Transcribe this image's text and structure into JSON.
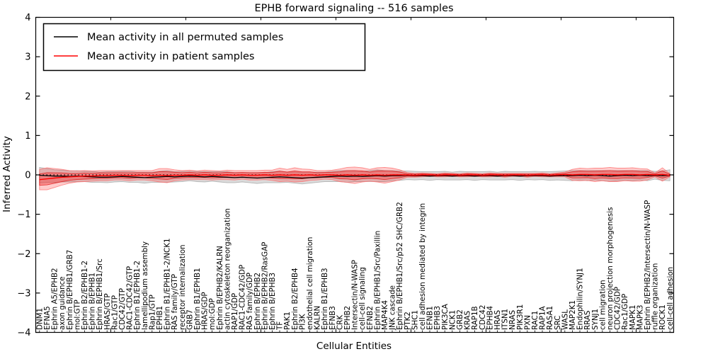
{
  "figure": {
    "title": "EPHB forward signaling -- 516 samples",
    "background": "#ffffff"
  },
  "legend": {
    "position": "upper left",
    "entries": [
      {
        "label": "Mean activity in all permuted samples",
        "color": "#000000"
      },
      {
        "label": "Mean activity in patient samples",
        "color": "#ff0000"
      }
    ]
  },
  "chart_data": {
    "type": "line",
    "title": "EPHB forward signaling -- 516 samples",
    "xlabel": "Cellular Entities",
    "ylabel": "Inferred Activity",
    "ylim": [
      -4,
      4
    ],
    "grid": false,
    "zero_line": "dotted-black-at-0",
    "legend_position": "upper left",
    "yticks": [
      {
        "value": 4,
        "label": "4"
      },
      {
        "value": 3,
        "label": "3"
      },
      {
        "value": 2,
        "label": "2"
      },
      {
        "value": 1,
        "label": "1"
      },
      {
        "value": 0,
        "label": "0"
      },
      {
        "value": -1,
        "label": "−1"
      },
      {
        "value": -2,
        "label": "−2"
      },
      {
        "value": -3,
        "label": "−3"
      },
      {
        "value": -4,
        "label": "−4"
      }
    ],
    "categories": [
      "DNM1",
      "EFNA5",
      "Ephrin A5/EPHB2",
      "axon guidance",
      "Ephrin B/EPHB1/GRB7",
      "mol:GTP",
      "Ephrin B2/EPHB1-2",
      "Ephrin B/EPHB1",
      "Ephrin B/EPHB1/Src",
      "HRAS/GTP",
      "Rac1/GTP",
      "CDC42/GTP",
      "RAC1-CDC42/GTP",
      "Ephrin B1/EPHB1-2",
      "lamellipodium assembly",
      "Rap1/GTP",
      "EPHB1",
      "Ephrin B1/EPHB1-2/NCK1",
      "RAS family/GTP",
      "receptor internalization",
      "GRB7",
      "Ephrin B1/EPHB1",
      "HRAS/GDP",
      "mol:GDP",
      "Ephrin B/EPHB2/KALRN",
      "actin cytoskeleton reorganization",
      "RAP1/GDP",
      "RAC1-CDC42/GDP",
      "RAS family/GDP",
      "Ephrin B/EPHB2",
      "Ephrin B/EPHB2/RasGAP",
      "Ephrin B/EPHB3",
      "TF",
      "PAK1",
      "Ephrin B2/EPHB4",
      "PI3K",
      "endothelial cell migration",
      "KALRN",
      "Ephrin B1/EPHB3",
      "EFNB3",
      "CRK",
      "EPHB2",
      "Intersectin/N-WASP",
      "cell-cell signaling",
      "EFNB2",
      "Ephrin B/EPHB1/Src/Paxillin",
      "MAP4K4",
      "JNK cascade",
      "Ephrin B/EPHB1/Src/p52 SHC/GRB2",
      "PTK2",
      "SHC1",
      "cell adhesion mediated by integrin",
      "EFNB1",
      "EPHB3",
      "PIK3CA",
      "NCK1",
      "GRB2",
      "KRAS",
      "RAP1B",
      "CDC42",
      "EPHB4",
      "HRAS",
      "ITSN1",
      "NRAS",
      "PIK3R1",
      "PXN",
      "RAC1",
      "RAP1A",
      "RASA1",
      "SRC",
      "WASL",
      "MAP2K1",
      "Endophilin/SYNJ1",
      "RRAS",
      "SYNJ1",
      "cell migration",
      "neuron projection morphogenesis",
      "CDC42/GDP",
      "Rac1/GDP",
      "MAPK1",
      "MAPK3",
      "Ephrin B/EPHB2/Intersectin/N-WASP",
      "ruffle organization",
      "ROCK1",
      "cell-cell adhesion"
    ],
    "series": [
      {
        "name": "Mean activity in all permuted samples",
        "color": "#000000",
        "values": [
          -0.01,
          -0.02,
          -0.03,
          -0.03,
          -0.04,
          -0.03,
          -0.04,
          -0.05,
          -0.06,
          -0.06,
          -0.05,
          -0.04,
          -0.05,
          -0.06,
          -0.07,
          -0.06,
          -0.05,
          -0.04,
          -0.05,
          -0.04,
          -0.03,
          -0.04,
          -0.05,
          -0.04,
          -0.05,
          -0.06,
          -0.07,
          -0.06,
          -0.07,
          -0.08,
          -0.07,
          -0.06,
          -0.05,
          -0.06,
          -0.07,
          -0.08,
          -0.07,
          -0.06,
          -0.05,
          -0.04,
          -0.03,
          -0.04,
          -0.03,
          -0.04,
          -0.03,
          -0.02,
          -0.03,
          -0.02,
          -0.02,
          -0.01,
          -0.02,
          -0.02,
          -0.03,
          -0.02,
          -0.02,
          -0.03,
          -0.02,
          -0.02,
          -0.03,
          -0.02,
          -0.02,
          -0.03,
          -0.02,
          -0.02,
          -0.03,
          -0.02,
          -0.02,
          -0.02,
          -0.03,
          -0.02,
          -0.02,
          -0.02,
          -0.01,
          -0.02,
          -0.01,
          -0.02,
          -0.03,
          -0.02,
          -0.01,
          -0.02,
          -0.01,
          -0.02,
          -0.01,
          -0.02,
          -0.01
        ]
      },
      {
        "name": "Mean activity in patient samples",
        "color": "#ff0000",
        "values": [
          -0.12,
          -0.1,
          -0.08,
          -0.06,
          -0.05,
          -0.04,
          -0.03,
          -0.03,
          -0.02,
          -0.02,
          -0.01,
          -0.01,
          -0.02,
          -0.01,
          -0.01,
          -0.02,
          -0.01,
          -0.02,
          -0.01,
          -0.01,
          0.0,
          -0.01,
          0.0,
          -0.01,
          -0.01,
          0.0,
          -0.01,
          0.0,
          -0.01,
          -0.01,
          0.0,
          -0.01,
          0.0,
          -0.01,
          0.0,
          -0.01,
          0.0,
          -0.01,
          0.0,
          0.0,
          -0.01,
          0.0,
          -0.01,
          0.0,
          -0.01,
          0.0,
          -0.01,
          0.0,
          0.0,
          0.0,
          -0.01,
          0.0,
          0.0,
          -0.01,
          0.0,
          0.0,
          -0.01,
          0.0,
          0.0,
          -0.01,
          0.0,
          0.0,
          -0.01,
          0.0,
          0.0,
          -0.01,
          0.0,
          0.0,
          -0.01,
          0.0,
          0.01,
          0.0,
          0.01,
          0.01,
          0.0,
          0.01,
          0.01,
          0.0,
          0.01,
          0.01,
          0.0,
          0.01,
          0.0,
          0.01,
          -0.01
        ]
      }
    ],
    "bands": [
      {
        "name": "permuted-samples-spread",
        "center_series": 0,
        "fill": "#888888",
        "fill_opacity": 0.3,
        "edge": "#8a8a8a",
        "edge_opacity": 0.55,
        "half_width": [
          0.2,
          0.18,
          0.16,
          0.15,
          0.14,
          0.14,
          0.13,
          0.14,
          0.13,
          0.14,
          0.13,
          0.13,
          0.14,
          0.13,
          0.14,
          0.13,
          0.14,
          0.15,
          0.13,
          0.13,
          0.12,
          0.13,
          0.13,
          0.12,
          0.13,
          0.14,
          0.13,
          0.12,
          0.13,
          0.14,
          0.13,
          0.14,
          0.15,
          0.13,
          0.14,
          0.15,
          0.14,
          0.13,
          0.12,
          0.13,
          0.14,
          0.15,
          0.14,
          0.13,
          0.14,
          0.15,
          0.14,
          0.13,
          0.12,
          0.11,
          0.11,
          0.1,
          0.11,
          0.1,
          0.11,
          0.1,
          0.11,
          0.1,
          0.11,
          0.1,
          0.11,
          0.1,
          0.11,
          0.1,
          0.11,
          0.1,
          0.11,
          0.1,
          0.11,
          0.11,
          0.12,
          0.13,
          0.12,
          0.13,
          0.12,
          0.13,
          0.14,
          0.13,
          0.12,
          0.13,
          0.12,
          0.13,
          0.1,
          0.12,
          0.14
        ]
      },
      {
        "name": "patient-samples-spread-outer",
        "center_series": 1,
        "fill": "#ff0000",
        "fill_opacity": 0.2,
        "edge": "#ff7070",
        "edge_opacity": 0.8,
        "half_width": [
          0.26,
          0.28,
          0.24,
          0.2,
          0.16,
          0.14,
          0.14,
          0.13,
          0.13,
          0.13,
          0.12,
          0.12,
          0.13,
          0.12,
          0.12,
          0.13,
          0.17,
          0.18,
          0.14,
          0.12,
          0.12,
          0.11,
          0.12,
          0.12,
          0.11,
          0.12,
          0.12,
          0.11,
          0.12,
          0.12,
          0.12,
          0.13,
          0.17,
          0.15,
          0.18,
          0.16,
          0.14,
          0.12,
          0.11,
          0.12,
          0.16,
          0.19,
          0.21,
          0.18,
          0.15,
          0.18,
          0.2,
          0.17,
          0.13,
          0.06,
          0.05,
          0.05,
          0.04,
          0.04,
          0.05,
          0.04,
          0.04,
          0.05,
          0.04,
          0.04,
          0.05,
          0.04,
          0.05,
          0.04,
          0.04,
          0.05,
          0.04,
          0.05,
          0.04,
          0.05,
          0.06,
          0.14,
          0.16,
          0.15,
          0.17,
          0.16,
          0.18,
          0.17,
          0.16,
          0.17,
          0.16,
          0.14,
          0.05,
          0.17,
          0.04
        ]
      },
      {
        "name": "patient-samples-spread-inner",
        "center_series": 1,
        "fill": "#ff0000",
        "fill_opacity": 0.28,
        "edge": "#dd2222",
        "edge_opacity": 0.85,
        "scale_of_band": 1,
        "scale": 0.55
      }
    ]
  }
}
